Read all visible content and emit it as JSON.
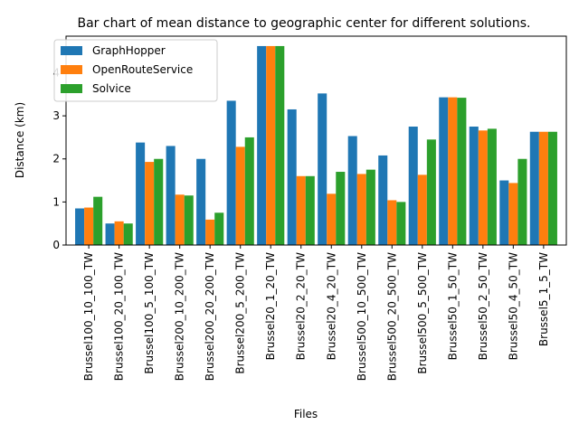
{
  "chart_data": {
    "type": "bar",
    "title": "Bar chart of mean distance to geographic center for different solutions.",
    "xlabel": "Files",
    "ylabel": "Distance (km)",
    "ylim": [
      0,
      4.85
    ],
    "yticks": [
      0,
      1,
      2,
      3,
      4
    ],
    "legend_position": "top-left",
    "grid": false,
    "categories": [
      "Brussel100_10_100_TW",
      "Brussel100_20_100_TW",
      "Brussel100_5_100_TW",
      "Brussel200_10_200_TW",
      "Brussel200_20_200_TW",
      "Brussel200_5_200_TW",
      "Brussel20_1_20_TW",
      "Brussel20_2_20_TW",
      "Brussel20_4_20_TW",
      "Brussel500_10_500_TW",
      "Brussel500_20_500_TW",
      "Brussel500_5_500_TW",
      "Brussel50_1_50_TW",
      "Brussel50_2_50_TW",
      "Brussel50_4_50_TW",
      "Brussel5_1_5_TW"
    ],
    "series": [
      {
        "name": "GraphHopper",
        "color": "#1f77b4",
        "values": [
          0.85,
          0.5,
          2.38,
          2.3,
          2.0,
          3.35,
          4.62,
          3.15,
          3.52,
          2.53,
          2.08,
          2.75,
          3.43,
          2.75,
          1.5,
          2.63
        ]
      },
      {
        "name": "OpenRouteService",
        "color": "#ff7f0e",
        "values": [
          0.87,
          0.55,
          1.93,
          1.17,
          0.59,
          2.28,
          4.62,
          1.6,
          1.19,
          1.65,
          1.04,
          1.63,
          3.43,
          2.66,
          1.44,
          2.63
        ]
      },
      {
        "name": "Solvice",
        "color": "#2ca02c",
        "values": [
          1.12,
          0.5,
          2.0,
          1.15,
          0.75,
          2.5,
          4.62,
          1.6,
          1.7,
          1.75,
          1.0,
          2.45,
          3.42,
          2.7,
          2.0,
          2.63
        ]
      }
    ]
  }
}
